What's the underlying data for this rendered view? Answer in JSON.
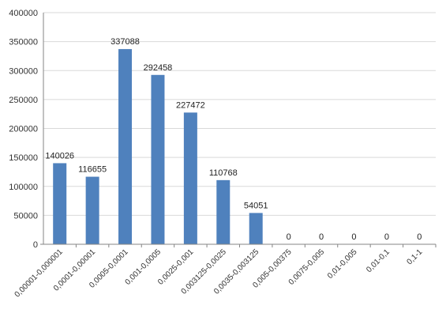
{
  "chart_data": {
    "type": "bar",
    "title": "",
    "xlabel": "",
    "ylabel": "",
    "categories": [
      "0,00001-0,000001",
      "0,0001-0,00001",
      "0,0005-0,0001",
      "0,001-0,0005",
      "0,0025-0,001",
      "0,003125-0,0025",
      "0,0035-0,003125",
      "0,005-0,00375",
      "0,0075-0,005",
      "0,01-0,005",
      "0,01-0,1",
      "0,1-1"
    ],
    "values": [
      140026,
      116655,
      337088,
      292458,
      227472,
      110768,
      54051,
      0,
      0,
      0,
      0,
      0
    ],
    "y_ticks": [
      "0",
      "50000",
      "100000",
      "150000",
      "200000",
      "250000",
      "300000",
      "350000",
      "400000"
    ],
    "ylim": [
      0,
      400000
    ],
    "grid": true,
    "legend": "none",
    "bar_color": "#4f81bd",
    "grid_color": "#d9d9d9",
    "axis_color": "#868686"
  }
}
